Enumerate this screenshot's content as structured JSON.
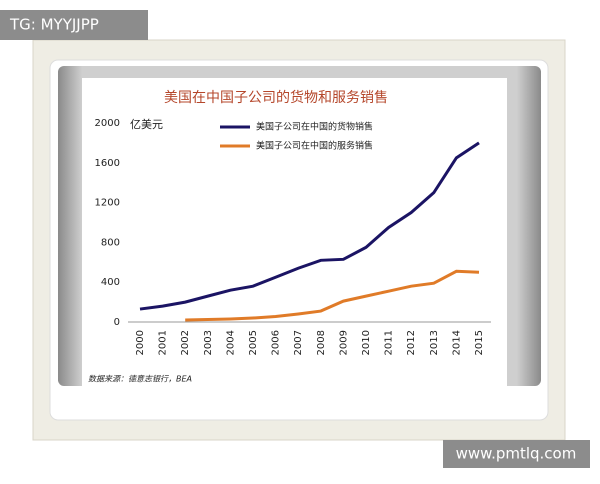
{
  "watermarks": [
    "TG: MYYJJPP",
    "www.pmtlq.com"
  ],
  "chart_data": {
    "type": "line",
    "title": "美国在中国子公司的货物和服务销售",
    "y_label": "亿美元",
    "source": "数据来源：德意志银行，BEA",
    "categories": [
      "2000",
      "2001",
      "2002",
      "2003",
      "2004",
      "2005",
      "2006",
      "2007",
      "2008",
      "2009",
      "2010",
      "2011",
      "2012",
      "2013",
      "2014",
      "2015"
    ],
    "series": [
      {
        "name": "美国子公司在中国的货物销售",
        "color": "#1b1464",
        "values": [
          130,
          160,
          200,
          260,
          320,
          360,
          450,
          540,
          620,
          630,
          750,
          950,
          1100,
          1300,
          1650,
          1800
        ]
      },
      {
        "name": "美国子公司在中国的服务销售",
        "color": "#e07b28",
        "values": [
          null,
          null,
          20,
          25,
          30,
          40,
          55,
          80,
          110,
          210,
          260,
          310,
          360,
          390,
          510,
          500
        ]
      }
    ],
    "ylim": [
      0,
      2000
    ],
    "yticks": [
      0,
      400,
      800,
      1200,
      1600,
      2000
    ],
    "grid": false,
    "legend": "top-right"
  }
}
